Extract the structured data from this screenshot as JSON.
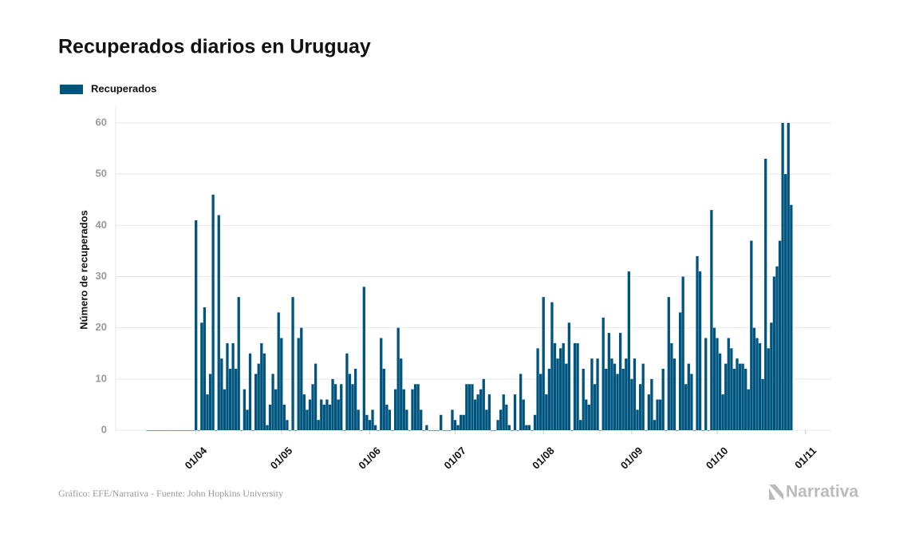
{
  "chart_data": {
    "type": "bar",
    "title": "Recuperados diarios en Uruguay",
    "y_label": "Número de recuperados",
    "source": "Gráfico: EFE/Narrativa - Fuente: John Hopkins University",
    "brand": "Narrativa",
    "legend": "top-left",
    "grid": true,
    "ylim": [
      0,
      60
    ],
    "yticks": [
      0,
      10,
      20,
      30,
      40,
      50,
      60
    ],
    "xticks": [
      "01/04",
      "01/05",
      "01/06",
      "01/07",
      "01/08",
      "01/09",
      "01/10",
      "01/11"
    ],
    "categories": [
      "15/03",
      "16/03",
      "17/03",
      "18/03",
      "19/03",
      "20/03",
      "21/03",
      "22/03",
      "23/03",
      "24/03",
      "25/03",
      "26/03",
      "27/03",
      "28/03",
      "29/03",
      "30/03",
      "31/03",
      "01/04",
      "02/04",
      "03/04",
      "04/04",
      "05/04",
      "06/04",
      "07/04",
      "08/04",
      "09/04",
      "10/04",
      "11/04",
      "12/04",
      "13/04",
      "14/04",
      "15/04",
      "16/04",
      "17/04",
      "18/04",
      "19/04",
      "20/04",
      "21/04",
      "22/04",
      "23/04",
      "24/04",
      "25/04",
      "26/04",
      "27/04",
      "28/04",
      "29/04",
      "30/04",
      "01/05",
      "02/05",
      "03/05",
      "04/05",
      "05/05",
      "06/05",
      "07/05",
      "08/05",
      "09/05",
      "10/05",
      "11/05",
      "12/05",
      "13/05",
      "14/05",
      "15/05",
      "16/05",
      "17/05",
      "18/05",
      "19/05",
      "20/05",
      "21/05",
      "22/05",
      "23/05",
      "24/05",
      "25/05",
      "26/05",
      "27/05",
      "28/05",
      "29/05",
      "30/05",
      "31/05",
      "01/06",
      "02/06",
      "03/06",
      "04/06",
      "05/06",
      "06/06",
      "07/06",
      "08/06",
      "09/06",
      "10/06",
      "11/06",
      "12/06",
      "13/06",
      "14/06",
      "15/06",
      "16/06",
      "17/06",
      "18/06",
      "19/06",
      "20/06",
      "21/06",
      "22/06",
      "23/06",
      "24/06",
      "25/06",
      "26/06",
      "27/06",
      "28/06",
      "29/06",
      "30/06",
      "01/07",
      "02/07",
      "03/07",
      "04/07",
      "05/07",
      "06/07",
      "07/07",
      "08/07",
      "09/07",
      "10/07",
      "11/07",
      "12/07",
      "13/07",
      "14/07",
      "15/07",
      "16/07",
      "17/07",
      "18/07",
      "19/07",
      "20/07",
      "21/07",
      "22/07",
      "23/07",
      "24/07",
      "25/07",
      "26/07",
      "27/07",
      "28/07",
      "29/07",
      "30/07",
      "31/07",
      "01/08",
      "02/08",
      "03/08",
      "04/08",
      "05/08",
      "06/08",
      "07/08",
      "08/08",
      "09/08",
      "10/08",
      "11/08",
      "12/08",
      "13/08",
      "14/08",
      "15/08",
      "16/08",
      "17/08",
      "18/08",
      "19/08",
      "20/08",
      "21/08",
      "22/08",
      "23/08",
      "24/08",
      "25/08",
      "26/08",
      "27/08",
      "28/08",
      "29/08",
      "30/08",
      "31/08",
      "01/09",
      "02/09",
      "03/09",
      "04/09",
      "05/09",
      "06/09",
      "07/09",
      "08/09",
      "09/09",
      "10/09",
      "11/09",
      "12/09",
      "13/09",
      "14/09",
      "15/09",
      "16/09",
      "17/09",
      "18/09",
      "19/09",
      "20/09",
      "21/09",
      "22/09",
      "23/09",
      "24/09",
      "25/09",
      "26/09",
      "27/09",
      "28/09",
      "29/09",
      "30/09",
      "01/10",
      "02/10",
      "03/10",
      "04/10",
      "05/10",
      "06/10",
      "07/10",
      "08/10",
      "09/10",
      "10/10",
      "11/10",
      "12/10",
      "13/10",
      "14/10",
      "15/10",
      "16/10",
      "17/10",
      "18/10",
      "19/10",
      "20/10",
      "21/10",
      "22/10",
      "23/10",
      "24/10",
      "25/10",
      "26/10",
      "27/10"
    ],
    "series": [
      {
        "name": "Recuperados",
        "color": "#00557f",
        "values": [
          0,
          0,
          0,
          0,
          0,
          0,
          0,
          0,
          0,
          0,
          0,
          0,
          0,
          0,
          0,
          0,
          0,
          41,
          0,
          21,
          24,
          7,
          11,
          46,
          0,
          42,
          14,
          8,
          17,
          12,
          17,
          12,
          26,
          0,
          8,
          4,
          15,
          0,
          11,
          13,
          17,
          15,
          1,
          5,
          11,
          8,
          23,
          18,
          5,
          2,
          0,
          26,
          0,
          18,
          20,
          7,
          4,
          6,
          9,
          13,
          2,
          6,
          5,
          6,
          5,
          10,
          9,
          6,
          9,
          0,
          15,
          11,
          9,
          12,
          4,
          0,
          28,
          3,
          2,
          4,
          1,
          0,
          18,
          12,
          5,
          4,
          0,
          8,
          20,
          14,
          8,
          4,
          0,
          8,
          9,
          9,
          4,
          0,
          1,
          0,
          0,
          0,
          0,
          3,
          0,
          0,
          0,
          4,
          2,
          1,
          3,
          3,
          9,
          9,
          9,
          6,
          7,
          8,
          10,
          4,
          7,
          0,
          0,
          2,
          4,
          7,
          5,
          1,
          0,
          7,
          0,
          11,
          6,
          1,
          1,
          0,
          3,
          16,
          11,
          26,
          7,
          12,
          25,
          17,
          14,
          16,
          17,
          13,
          21,
          0,
          17,
          17,
          2,
          12,
          6,
          5,
          14,
          9,
          14,
          0,
          22,
          12,
          19,
          14,
          13,
          11,
          19,
          12,
          14,
          31,
          10,
          14,
          4,
          9,
          13,
          0,
          7,
          10,
          2,
          6,
          6,
          12,
          0,
          26,
          17,
          14,
          0,
          23,
          30,
          9,
          13,
          11,
          0,
          34,
          31,
          0,
          18,
          0,
          43,
          20,
          18,
          15,
          7,
          13,
          18,
          16,
          12,
          14,
          13,
          13,
          12,
          8,
          37,
          20,
          18,
          17,
          10,
          53,
          16,
          21,
          30,
          32,
          37,
          60,
          50,
          60,
          44
        ]
      }
    ]
  }
}
